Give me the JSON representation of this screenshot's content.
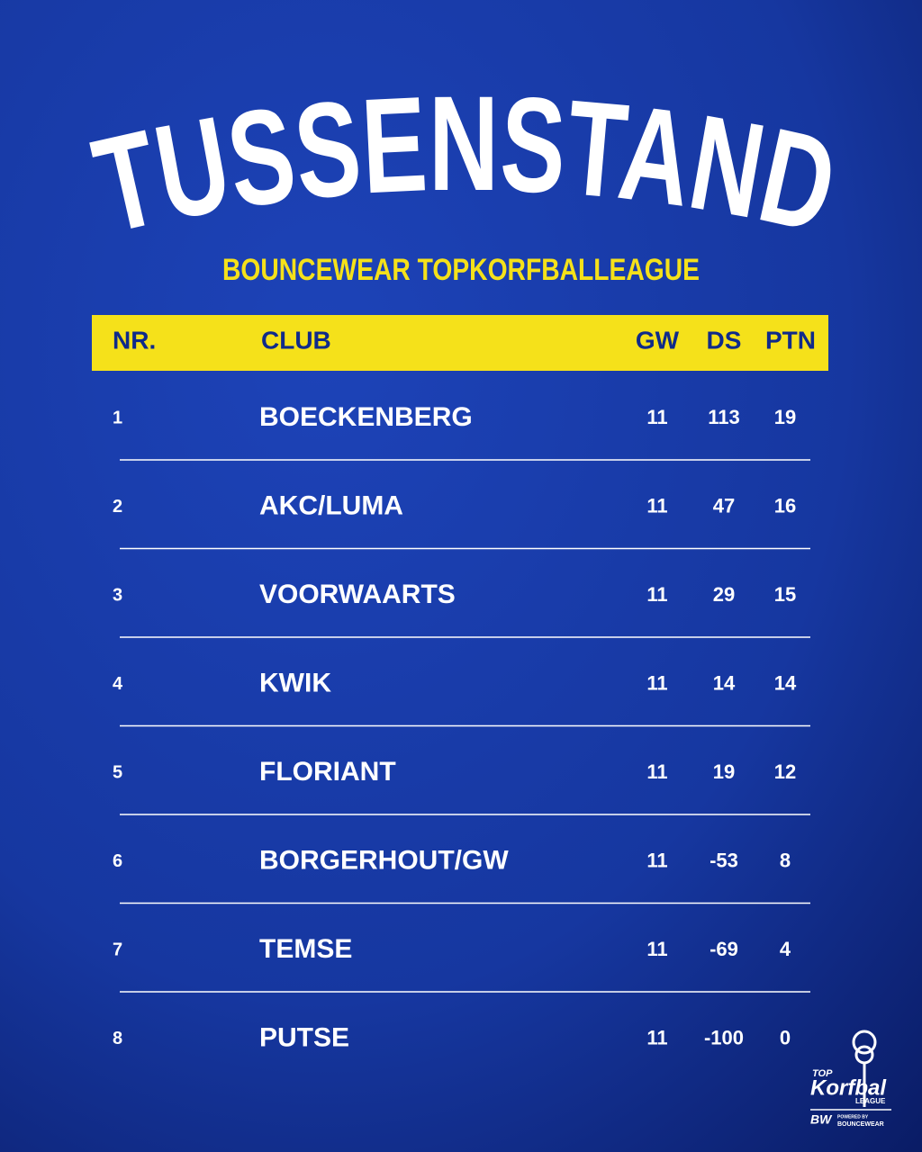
{
  "title": "TUSSENSTAND",
  "subtitle": "BOUNCEWEAR TOPKORFBALLEAGUE",
  "table": {
    "header": [
      "NR.",
      "CLUB",
      "GW",
      "DS",
      "PTN"
    ],
    "rows": [
      [
        1,
        "BOECKENBERG",
        11,
        113,
        19
      ],
      [
        2,
        "AKC/LUMA",
        11,
        47,
        16
      ],
      [
        3,
        "VOORWAARTS",
        11,
        29,
        15
      ],
      [
        4,
        "KWIK",
        11,
        14,
        14
      ],
      [
        5,
        "FLORIANT",
        11,
        19,
        12
      ],
      [
        6,
        "BORGERHOUT/GW",
        11,
        -53,
        8
      ],
      [
        7,
        "TEMSE",
        11,
        -69,
        4
      ],
      [
        8,
        "PUTSE",
        11,
        -100,
        0
      ]
    ]
  },
  "logo": {
    "top": "TOP",
    "name": "Korfbal",
    "league": "LEAGUE",
    "mark": "BW",
    "powered": "POWERED BY",
    "brand": "BOUNCEWEAR"
  }
}
